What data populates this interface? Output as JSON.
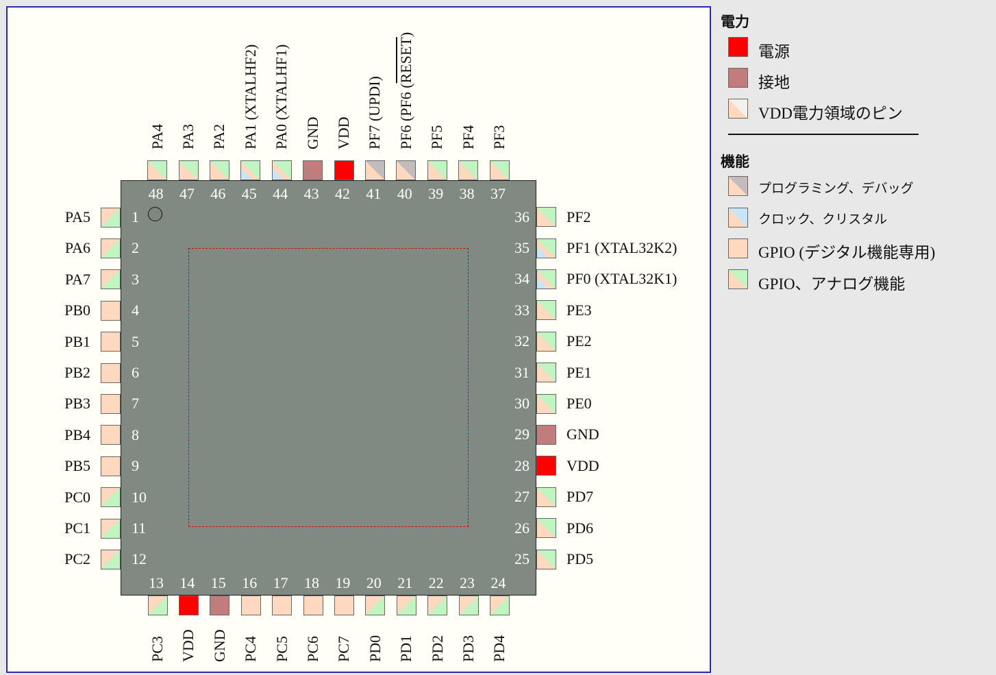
{
  "pins": [
    {
      "num": "1",
      "name": "PA5",
      "t": "an"
    },
    {
      "num": "2",
      "name": "PA6",
      "t": "an"
    },
    {
      "num": "3",
      "name": "PA7",
      "t": "an"
    },
    {
      "num": "4",
      "name": "PB0",
      "t": "dig"
    },
    {
      "num": "5",
      "name": "PB1",
      "t": "dig"
    },
    {
      "num": "6",
      "name": "PB2",
      "t": "dig"
    },
    {
      "num": "7",
      "name": "PB3",
      "t": "dig"
    },
    {
      "num": "8",
      "name": "PB4",
      "t": "dig"
    },
    {
      "num": "9",
      "name": "PB5",
      "t": "dig"
    },
    {
      "num": "10",
      "name": "PC0",
      "t": "an"
    },
    {
      "num": "11",
      "name": "PC1",
      "t": "an"
    },
    {
      "num": "12",
      "name": "PC2",
      "t": "an"
    },
    {
      "num": "13",
      "name": "PC3",
      "t": "an"
    },
    {
      "num": "14",
      "name": "VDD",
      "t": "vdd"
    },
    {
      "num": "15",
      "name": "GND",
      "t": "gnd"
    },
    {
      "num": "16",
      "name": "PC4",
      "t": "dig"
    },
    {
      "num": "17",
      "name": "PC5",
      "t": "dig"
    },
    {
      "num": "18",
      "name": "PC6",
      "t": "dig"
    },
    {
      "num": "19",
      "name": "PC7",
      "t": "dig"
    },
    {
      "num": "20",
      "name": "PD0",
      "t": "an"
    },
    {
      "num": "21",
      "name": "PD1",
      "t": "an"
    },
    {
      "num": "22",
      "name": "PD2",
      "t": "an"
    },
    {
      "num": "23",
      "name": "PD3",
      "t": "an"
    },
    {
      "num": "24",
      "name": "PD4",
      "t": "an"
    },
    {
      "num": "25",
      "name": "PD5",
      "t": "an"
    },
    {
      "num": "26",
      "name": "PD6",
      "t": "an"
    },
    {
      "num": "27",
      "name": "PD7",
      "t": "an"
    },
    {
      "num": "28",
      "name": "VDD",
      "t": "vdd"
    },
    {
      "num": "29",
      "name": "GND",
      "t": "gnd"
    },
    {
      "num": "30",
      "name": "PE0",
      "t": "an"
    },
    {
      "num": "31",
      "name": "PE1",
      "t": "an"
    },
    {
      "num": "32",
      "name": "PE2",
      "t": "an"
    },
    {
      "num": "33",
      "name": "PE3",
      "t": "an"
    },
    {
      "num": "34",
      "name": "PF0 (XTAL32K1)",
      "t": "an-xtal"
    },
    {
      "num": "35",
      "name": "PF1 (XTAL32K2)",
      "t": "an-xtal"
    },
    {
      "num": "36",
      "name": "PF2",
      "t": "an"
    },
    {
      "num": "37",
      "name": "PF3",
      "t": "an"
    },
    {
      "num": "38",
      "name": "PF4",
      "t": "an"
    },
    {
      "num": "39",
      "name": "PF5",
      "t": "an"
    },
    {
      "num": "40",
      "name": "PF6 (",
      "overline": "RESET",
      "suffix": ")",
      "t": "prog"
    },
    {
      "num": "41",
      "name": "PF7 (UPDI)",
      "t": "prog"
    },
    {
      "num": "42",
      "name": "VDD",
      "t": "vdd"
    },
    {
      "num": "43",
      "name": "GND",
      "t": "gnd"
    },
    {
      "num": "44",
      "name": "PA0 (XTALHF1)",
      "t": "an-xtal"
    },
    {
      "num": "45",
      "name": "PA1 (XTALHF2)",
      "t": "an-xtal"
    },
    {
      "num": "46",
      "name": "PA2",
      "t": "an"
    },
    {
      "num": "47",
      "name": "PA3",
      "t": "an"
    },
    {
      "num": "48",
      "name": "PA4",
      "t": "an"
    }
  ],
  "legend": {
    "power_title": "電力",
    "power_items": [
      {
        "label": "電源",
        "t": "vdd"
      },
      {
        "label": "接地",
        "t": "gnd"
      },
      {
        "label": "VDD電力領域のピン",
        "t": "dom"
      }
    ],
    "func_title": "機能",
    "func_items": [
      {
        "label": "プログラミング、デバッグ",
        "t": "prog"
      },
      {
        "label": "クロック、クリスタル",
        "t": "xtal"
      },
      {
        "label": "GPIO (デジタル機能専用)",
        "t": "dig"
      },
      {
        "label": "GPIO、アナログ機能",
        "t": "an"
      }
    ]
  },
  "colors": {
    "vdd": "#ff0000",
    "gnd": "#c17c7e",
    "peach": "#ffd8c0",
    "green": "#c0f4c0",
    "grey": "#c4bcbc",
    "blue": "#c8e4f8",
    "chip": "#818a82",
    "pad_outline": "#d40000",
    "frame": "#2a2ab0"
  }
}
